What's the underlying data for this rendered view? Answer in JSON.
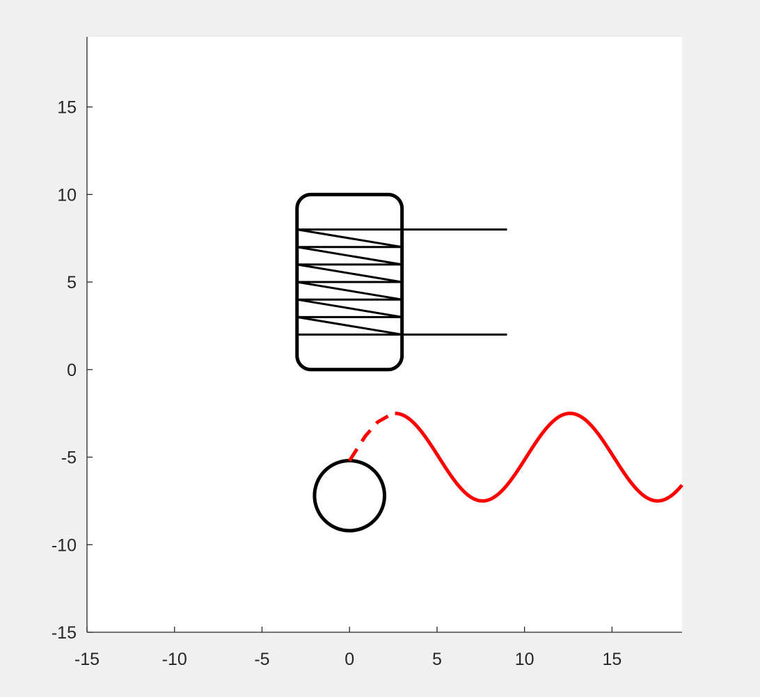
{
  "figure": {
    "background_color": "#f0f0f0",
    "axes_background_color": "#ffffff",
    "axis_color": "#262626"
  },
  "chart_data": {
    "type": "diagram",
    "title": "",
    "xlabel": "",
    "ylabel": "",
    "xlim": [
      -15,
      19
    ],
    "ylim": [
      -15,
      19
    ],
    "grid": false,
    "legend": "none",
    "x_ticks": [
      -15,
      -10,
      -5,
      0,
      5,
      10,
      15
    ],
    "y_ticks": [
      -15,
      -10,
      -5,
      0,
      5,
      10,
      15
    ],
    "x_tick_labels": [
      "-15",
      "-10",
      "-5",
      "0",
      "5",
      "10",
      "15"
    ],
    "y_tick_labels": [
      "-15",
      "-10",
      "-5",
      "0",
      "5",
      "10",
      "15"
    ],
    "shapes": {
      "coil_frame": {
        "x_range": [
          -3,
          3
        ],
        "y_range": [
          0,
          10
        ],
        "corner_radius": 0.8,
        "color": "#000000"
      },
      "coil_rungs_y": [
        2,
        3,
        4,
        5,
        6,
        7,
        8
      ],
      "coil_diagonals": [
        [
          [
            -3,
            8
          ],
          [
            3,
            7
          ]
        ],
        [
          [
            -3,
            7
          ],
          [
            3,
            6
          ]
        ],
        [
          [
            -3,
            6
          ],
          [
            3,
            5
          ]
        ],
        [
          [
            -3,
            5
          ],
          [
            3,
            4
          ]
        ],
        [
          [
            -3,
            4
          ],
          [
            3,
            3
          ]
        ],
        [
          [
            -3,
            3
          ],
          [
            3,
            2
          ]
        ]
      ],
      "leads": [
        {
          "x1": 3,
          "x2": 9,
          "y": 8
        },
        {
          "x1": 3,
          "x2": 9,
          "y": 2
        }
      ],
      "wheel": {
        "center": [
          0,
          -7.2
        ],
        "radius": 2,
        "color": "#000000"
      },
      "dashed_link": {
        "points": [
          [
            0,
            -5.2
          ],
          [
            0.9,
            -3.8
          ],
          [
            1.6,
            -3.0
          ],
          [
            2.3,
            -2.6
          ],
          [
            2.7,
            -2.5
          ]
        ],
        "color": "#ff0000"
      },
      "wave": {
        "x_start": 2.6,
        "x_end": 19,
        "offset": -5,
        "amplitude": 2.5,
        "period": 10,
        "crest_x": 2.6,
        "color": "#ff0000"
      }
    }
  }
}
